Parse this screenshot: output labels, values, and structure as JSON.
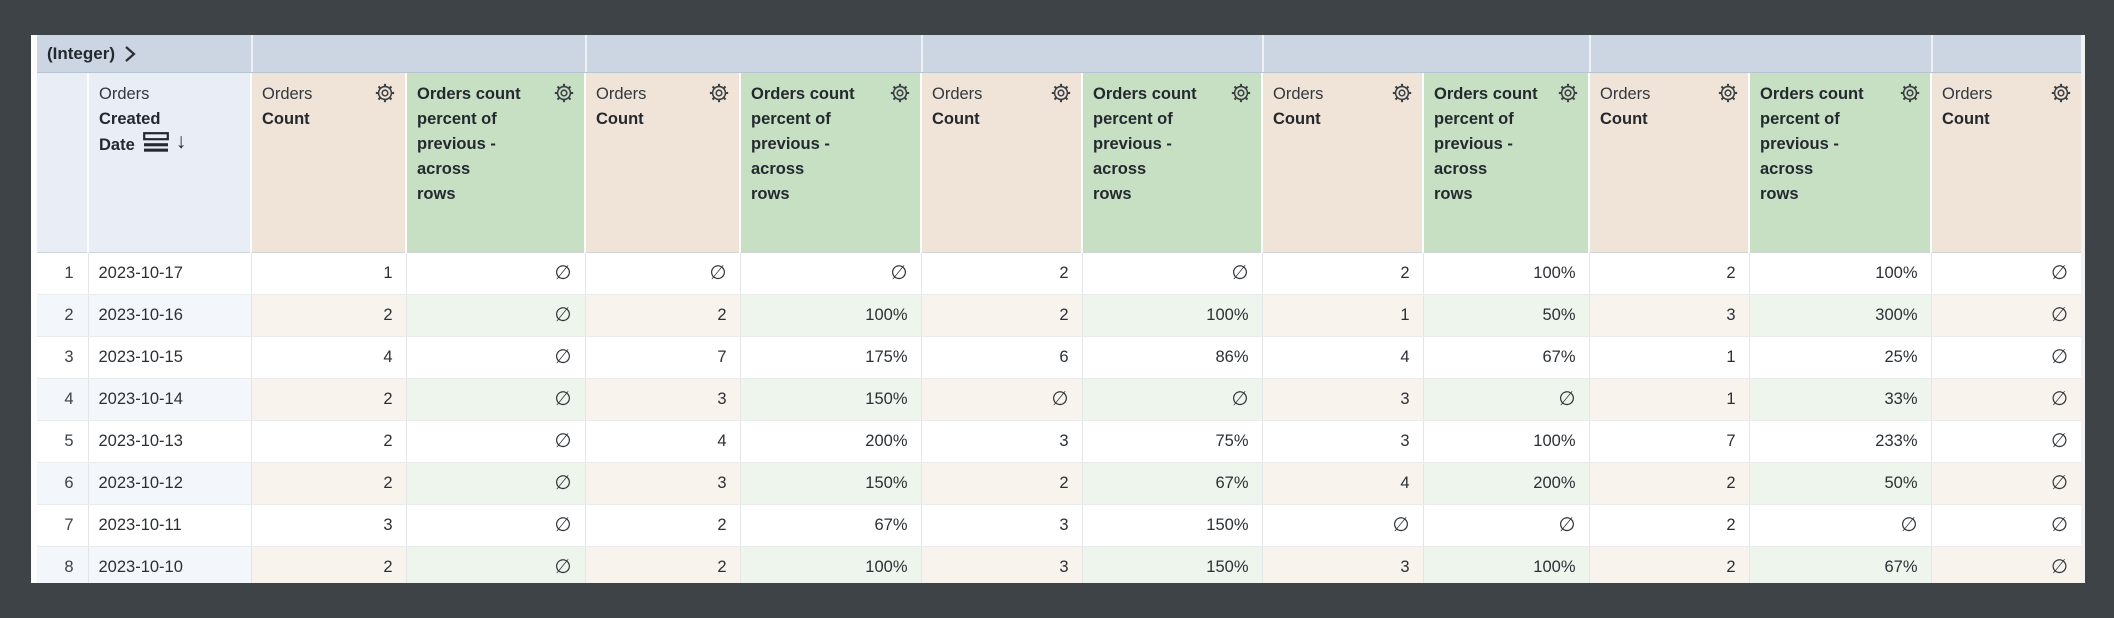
{
  "pivot_band": {
    "label": "(Integer)",
    "chevron_icon": "chevron-right-icon"
  },
  "null_symbol": "∅",
  "columns": [
    {
      "kind": "index",
      "label": ""
    },
    {
      "kind": "dimension",
      "view": "Orders",
      "field": "Created Date",
      "field_lines": [
        "Created",
        "Date"
      ],
      "icons": [
        "subtotal-icon",
        "sort-desc-icon"
      ],
      "sort": "descending"
    },
    {
      "kind": "measure",
      "view": "Orders",
      "field": "Count",
      "field_lines": [
        "Count"
      ],
      "icons": [
        "gear-icon"
      ]
    },
    {
      "kind": "calc",
      "field": "Orders count percent of previous - across rows",
      "field_lines": [
        "Orders count",
        "percent of",
        "previous -",
        "across",
        "rows"
      ],
      "icons": [
        "gear-icon"
      ]
    },
    {
      "kind": "measure",
      "view": "Orders",
      "field": "Count",
      "field_lines": [
        "Count"
      ],
      "icons": [
        "gear-icon"
      ]
    },
    {
      "kind": "calc",
      "field": "Orders count percent of previous - across rows",
      "field_lines": [
        "Orders count",
        "percent of",
        "previous -",
        "across",
        "rows"
      ],
      "icons": [
        "gear-icon"
      ]
    },
    {
      "kind": "measure",
      "view": "Orders",
      "field": "Count",
      "field_lines": [
        "Count"
      ],
      "icons": [
        "gear-icon"
      ]
    },
    {
      "kind": "calc",
      "field": "Orders count percent of previous - across rows",
      "field_lines": [
        "Orders count",
        "percent of",
        "previous -",
        "across",
        "rows"
      ],
      "icons": [
        "gear-icon"
      ]
    },
    {
      "kind": "measure",
      "view": "Orders",
      "field": "Count",
      "field_lines": [
        "Count"
      ],
      "icons": [
        "gear-icon"
      ]
    },
    {
      "kind": "calc",
      "field": "Orders count percent of previous - across rows",
      "field_lines": [
        "Orders count",
        "percent of",
        "previous -",
        "across",
        "rows"
      ],
      "icons": [
        "gear-icon"
      ]
    },
    {
      "kind": "measure",
      "view": "Orders",
      "field": "Count",
      "field_lines": [
        "Count"
      ],
      "icons": [
        "gear-icon"
      ]
    },
    {
      "kind": "calc",
      "field": "Orders count percent of previous - across rows",
      "field_lines": [
        "Orders count",
        "percent of",
        "previous -",
        "across",
        "rows"
      ],
      "icons": [
        "gear-icon"
      ]
    },
    {
      "kind": "measure",
      "view": "Orders",
      "field": "Count",
      "field_lines": [
        "Count"
      ],
      "icons": [
        "gear-icon"
      ]
    }
  ],
  "rows": [
    [
      "1",
      "2023-10-17",
      "1",
      "∅",
      "∅",
      "∅",
      "2",
      "∅",
      "2",
      "100%",
      "2",
      "100%",
      "∅"
    ],
    [
      "2",
      "2023-10-16",
      "2",
      "∅",
      "2",
      "100%",
      "2",
      "100%",
      "1",
      "50%",
      "3",
      "300%",
      "∅"
    ],
    [
      "3",
      "2023-10-15",
      "4",
      "∅",
      "7",
      "175%",
      "6",
      "86%",
      "4",
      "67%",
      "1",
      "25%",
      "∅"
    ],
    [
      "4",
      "2023-10-14",
      "2",
      "∅",
      "3",
      "150%",
      "∅",
      "∅",
      "3",
      "∅",
      "1",
      "33%",
      "∅"
    ],
    [
      "5",
      "2023-10-13",
      "2",
      "∅",
      "4",
      "200%",
      "3",
      "75%",
      "3",
      "100%",
      "7",
      "233%",
      "∅"
    ],
    [
      "6",
      "2023-10-12",
      "2",
      "∅",
      "3",
      "150%",
      "2",
      "67%",
      "4",
      "200%",
      "2",
      "50%",
      "∅"
    ],
    [
      "7",
      "2023-10-11",
      "3",
      "∅",
      "2",
      "67%",
      "3",
      "150%",
      "∅",
      "∅",
      "2",
      "∅",
      "∅"
    ],
    [
      "8",
      "2023-10-10",
      "2",
      "∅",
      "2",
      "100%",
      "3",
      "150%",
      "3",
      "100%",
      "2",
      "67%",
      "∅"
    ]
  ],
  "colors": {
    "background": "#3e4347",
    "pivot_band": "#ccd6e3",
    "pivot_band_border": "#b8c3d2",
    "header_dimension_bg": "#e9eef6",
    "header_measure_bg": "#f0e4d8",
    "header_calc_bg": "#c7e0c3",
    "stripe_dimension_bg": "#f3f6fa",
    "stripe_measure_bg": "#f9f3ee",
    "stripe_calc_bg": "#eef5ec",
    "text": "#2b3036",
    "grid_vertical": "#e3e5e7",
    "grid_horizontal": "#eaebed"
  }
}
